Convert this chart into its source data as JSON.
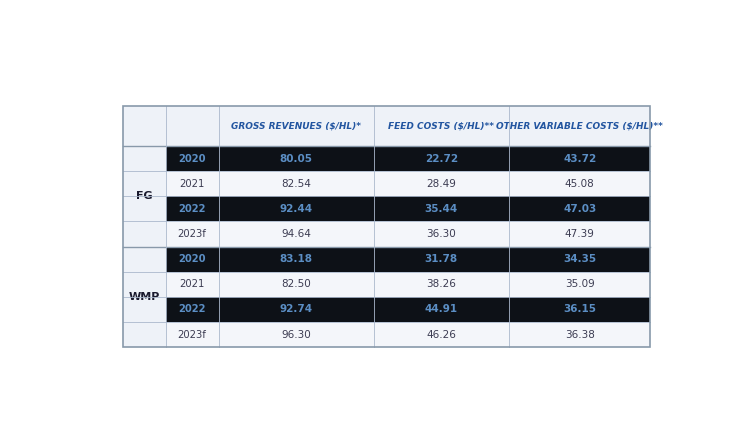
{
  "col_headers": [
    "GROSS REVENUES ($/HL)*",
    "FEED COSTS ($/HL)**",
    "OTHER VARIABLE COSTS ($/HL)**"
  ],
  "rows": [
    {
      "group": "FG",
      "year": "2020",
      "gross": "80.05",
      "feed": "22.72",
      "other": "43.72",
      "shaded": true
    },
    {
      "group": "FG",
      "year": "2021",
      "gross": "82.54",
      "feed": "28.49",
      "other": "45.08",
      "shaded": false
    },
    {
      "group": "FG",
      "year": "2022",
      "gross": "92.44",
      "feed": "35.44",
      "other": "47.03",
      "shaded": true
    },
    {
      "group": "FG",
      "year": "2023f",
      "gross": "94.64",
      "feed": "36.30",
      "other": "47.39",
      "shaded": false
    },
    {
      "group": "WMP",
      "year": "2020",
      "gross": "83.18",
      "feed": "31.78",
      "other": "34.35",
      "shaded": true
    },
    {
      "group": "WMP",
      "year": "2021",
      "gross": "82.50",
      "feed": "38.26",
      "other": "35.09",
      "shaded": false
    },
    {
      "group": "WMP",
      "year": "2022",
      "gross": "92.74",
      "feed": "44.91",
      "other": "36.15",
      "shaded": true
    },
    {
      "group": "WMP",
      "year": "2023f",
      "gross": "96.30",
      "feed": "46.26",
      "other": "36.38",
      "shaded": false
    }
  ],
  "fig_bg": "#ffffff",
  "table_outer_bg": "#eef2f8",
  "header_bg": "#eef2f8",
  "row_shaded_bg": "#0d1117",
  "row_light_bg": "#f4f6fa",
  "group_col_bg": "#eef2f8",
  "shaded_text_color": "#5b8ec4",
  "light_text_color": "#3c3c52",
  "header_text_color": "#2255a0",
  "group_label_color": "#1a1a2e",
  "border_color": "#aab8cc",
  "outer_border_color": "#8899aa"
}
